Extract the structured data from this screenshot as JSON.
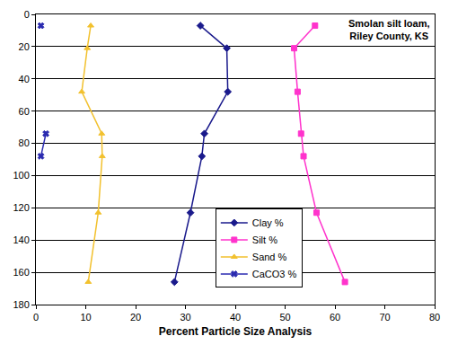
{
  "chart_data": {
    "type": "line",
    "x_label": "Percent Particle Size Analysis",
    "annotations": [
      "Smolan silt loam,",
      "Riley County, KS"
    ],
    "y": [
      7,
      21,
      48,
      74,
      88,
      123,
      166
    ],
    "series": [
      {
        "name": "Clay %",
        "color": "#1a1a8c",
        "marker": "diamond",
        "values": [
          33,
          38.3,
          38.5,
          33.8,
          33.3,
          31,
          27.8
        ]
      },
      {
        "name": "Silt %",
        "color": "#ff33cc",
        "marker": "square",
        "values": [
          56,
          51.8,
          52.5,
          53.2,
          53.7,
          56.3,
          62
        ]
      },
      {
        "name": "Sand %",
        "color": "#f2c12e",
        "marker": "triangle-up",
        "values": [
          11,
          10.3,
          9.2,
          13.2,
          13.3,
          12.5,
          10.5
        ]
      },
      {
        "name": "CaCO3 %",
        "color": "#2a2ab0",
        "marker": "x",
        "values": [
          1,
          null,
          null,
          2,
          1,
          null,
          null
        ]
      }
    ],
    "xlim": [
      0,
      80
    ],
    "xticks": [
      0,
      10,
      20,
      30,
      40,
      50,
      60,
      70,
      80
    ],
    "ylim": [
      180,
      0
    ],
    "yticks": [
      0,
      20,
      40,
      60,
      80,
      100,
      120,
      140,
      160,
      180
    ],
    "grid": true,
    "legend": "center"
  }
}
